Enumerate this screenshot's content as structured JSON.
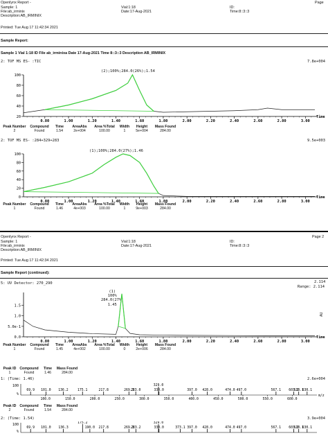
{
  "page1": {
    "header": {
      "title": "Openlynx Report -",
      "sample": "Sample: 1",
      "file": "File:ab_irminix",
      "description": "Description:AB_IRMINIX",
      "vial": "Vial:1:18",
      "date": "Date:17-Aug-2021",
      "id": "ID:",
      "time": "Time:8::3::3",
      "page": "Page",
      "printed": "Printed: Tue Aug 17 11:42:34 2021"
    },
    "section_title": "Sample Report:",
    "sample_line": "Sample 1  Vial 1:18 ID  File ab_irminixa Date 17-Aug-2021 Time 8::3::3  Description AB_IRMINIX",
    "chart1": {
      "trace_label": "2:  TOF MS ES- :TIC",
      "max_label": "7.8e+004",
      "peak_label": "(2);100%;284.0(26%);1.54",
      "time_label": "Time"
    },
    "table1": {
      "headers": [
        "Peak Number",
        "Compound",
        "Time",
        "AreaAbs",
        "Area %Total",
        "Width",
        "Height",
        "Mass Found"
      ],
      "rows": [
        [
          "2",
          "Found",
          "1.54",
          "2e+004",
          "100.00",
          "1",
          "5e+004",
          "284.00"
        ]
      ]
    },
    "chart2": {
      "trace_label": "2:  TOF MS ES- :284+329+283",
      "max_label": "9.5e+003",
      "peak_label": "(1);100%;284.0(27%);1.46",
      "time_label": "Time"
    },
    "table2": {
      "headers": [
        "Peak Number",
        "Compound",
        "Time",
        "AreaAbs",
        "Area %Total",
        "Width",
        "Height",
        "Mass Found"
      ],
      "rows": [
        [
          "1",
          "Found",
          "1.46",
          "4e+003",
          "100.00",
          "1",
          "9e+003",
          "284.00"
        ]
      ]
    }
  },
  "page2": {
    "header": {
      "title": "Openlynx Report -",
      "sample": "Sample: 1",
      "file": "File:ab_irminix",
      "description": "Description:AB_IRMINIX",
      "vial": "Vial:1:18",
      "date": "Date:17-Aug-2021",
      "id": "ID:",
      "time": "Time:8::3::3",
      "page": "Page 2",
      "printed": "Printed: Tue Aug 17 11:42:34 2021"
    },
    "section_title": "Sample Report (continued):",
    "chart3": {
      "trace_label": "5:  UV Detector: 270_290",
      "max_label": "2.114",
      "range_label": "Range: 2.114",
      "peak_label": [
        "(1)",
        "100%",
        "284.0(27%)",
        "1.45"
      ],
      "y_unit": "AU",
      "time_label": "Time"
    },
    "table3": {
      "headers": [
        "Peak Number",
        "Compound",
        "Time",
        "AreaAbs",
        "Area %Total",
        "Width",
        "Height",
        "Mass Found"
      ],
      "rows": [
        [
          "1",
          "Found",
          "1.45",
          "4e+002",
          "100.00",
          "0",
          "2e+006",
          "284.00"
        ]
      ]
    },
    "table4": {
      "headers": [
        "Peak ID",
        "Compound",
        "Time",
        "Mass Found"
      ],
      "rows": [
        [
          "1",
          "Found",
          "1.46",
          "284.00"
        ]
      ]
    },
    "spectrum1": {
      "trace_label": "1:  (Time: 1.46)",
      "max_label": "2.6e+004",
      "labels": [
        "69.9",
        "101.0",
        "136.2",
        "175.1",
        "217.8",
        "269.1",
        "283.0",
        "329.0",
        "330.0",
        "397.0",
        "428.0",
        "474.0",
        "497.0",
        "567.1",
        "603.0",
        "613.1",
        "630.1"
      ],
      "axis_ticks": [
        "100.0",
        "150.0",
        "200.0",
        "250.0",
        "300.0",
        "350.0",
        "400.0",
        "450.0",
        "500.0",
        "550.0",
        "600.0"
      ],
      "axis_unit": "m/z"
    },
    "table5": {
      "headers": [
        "Peak ID",
        "Compound",
        "Time",
        "Mass Found"
      ],
      "rows": [
        [
          "2",
          "Found",
          "1.54",
          "284.00"
        ]
      ]
    },
    "spectrum2": {
      "trace_label": "2:  (Time: 1.54)",
      "max_label": "3.9e+004",
      "labels": [
        "69.9",
        "101.0",
        "136.3",
        "175.2",
        "190.0",
        "217.8",
        "269.1",
        "283.2",
        "329.0",
        "330.0",
        "373.1",
        "397.0",
        "428.0",
        "474.0",
        "497.0",
        "567.1",
        "603.0",
        "613.1",
        "630.1"
      ]
    }
  },
  "chart_data": [
    {
      "type": "line",
      "title": "2:  TOF MS ES- :TIC",
      "x_ticks": [
        "0.80",
        "1.00",
        "1.20",
        "1.40",
        "1.60",
        "1.80",
        "2.00",
        "2.20",
        "2.40",
        "2.60",
        "2.80",
        "3.00"
      ],
      "y_ticks": [
        "20",
        "40",
        "60",
        "80",
        "100"
      ],
      "xlim": [
        0.62,
        3.08
      ],
      "ylim": [
        20,
        100
      ],
      "series": [
        {
          "x": [
            0.62,
            0.8,
            1.0,
            1.2,
            1.4,
            1.5,
            1.54,
            1.6,
            1.66,
            1.72,
            1.8,
            2.0,
            2.2,
            2.4,
            2.6,
            2.68,
            2.8,
            3.0,
            3.08
          ],
          "y": [
            27,
            33,
            42,
            54,
            70,
            84,
            100,
            70,
            42,
            30,
            28,
            29,
            30,
            31,
            33,
            36,
            33,
            33,
            33
          ]
        }
      ]
    },
    {
      "type": "line",
      "title": "2:  TOF MS ES- :284+329+283",
      "x_ticks": [
        "0.80",
        "1.00",
        "1.20",
        "1.40",
        "1.60",
        "1.80",
        "2.00",
        "2.20",
        "2.40",
        "2.60",
        "2.80",
        "3.00"
      ],
      "y_ticks": [
        "0",
        "20",
        "40",
        "60",
        "80",
        "100"
      ],
      "xlim": [
        0.62,
        3.08
      ],
      "ylim": [
        0,
        100
      ],
      "series": [
        {
          "x": [
            0.62,
            0.8,
            1.0,
            1.2,
            1.3,
            1.4,
            1.46,
            1.52,
            1.6,
            1.66,
            1.72,
            1.76,
            1.8,
            2.0,
            2.4,
            3.08
          ],
          "y": [
            12,
            22,
            35,
            55,
            75,
            92,
            100,
            96,
            80,
            55,
            25,
            8,
            3,
            1,
            1,
            1
          ]
        }
      ]
    },
    {
      "type": "line",
      "title": "5:  UV Detector: 270_290",
      "x_ticks": [
        "0.80",
        "1.00",
        "1.20",
        "1.40",
        "1.60",
        "1.80",
        "2.00",
        "2.20",
        "2.40",
        "2.60",
        "2.80",
        "3.00"
      ],
      "y_ticks": [
        "0.0",
        "5.0e-1",
        "1.0",
        "1.5"
      ],
      "xlim": [
        0.62,
        3.08
      ],
      "ylim": [
        0,
        2.114
      ],
      "series": [
        {
          "x": [
            0.62,
            0.7,
            0.8,
            1.0,
            1.2,
            1.4,
            1.42,
            1.45,
            1.48,
            1.52,
            1.6,
            1.8,
            2.0,
            2.4,
            2.8,
            3.08
          ],
          "y": [
            0.8,
            0.5,
            0.33,
            0.22,
            0.15,
            0.12,
            0.5,
            2.05,
            0.4,
            0.16,
            0.1,
            0.08,
            0.07,
            0.06,
            0.05,
            0.05
          ]
        }
      ]
    }
  ]
}
